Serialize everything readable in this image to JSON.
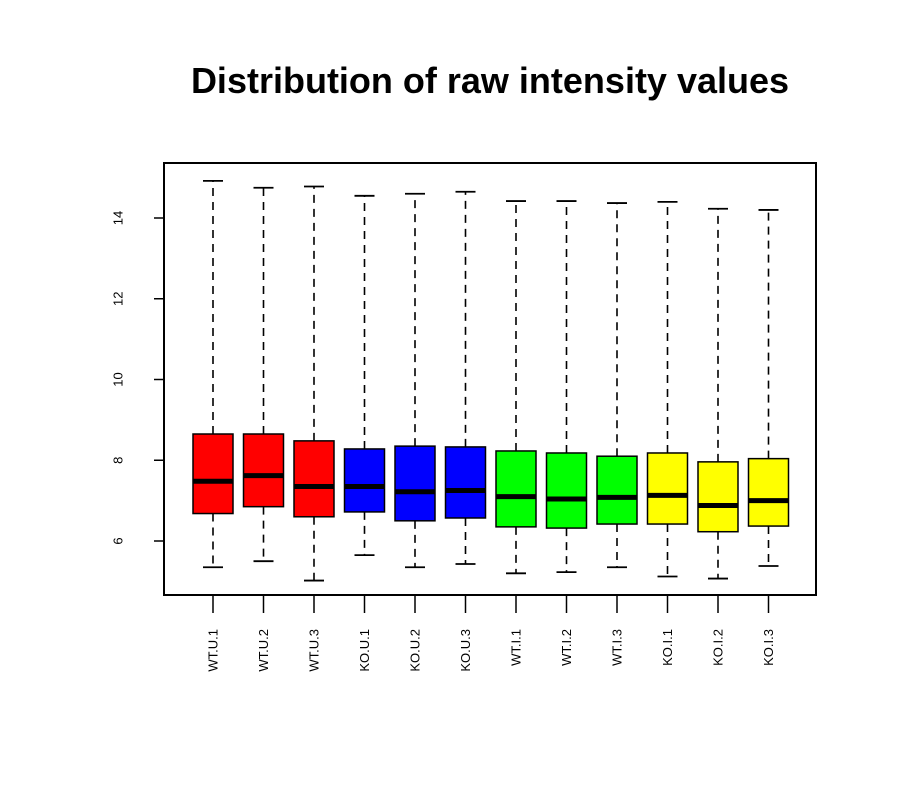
{
  "chart_data": {
    "type": "boxplot",
    "title": "Distribution of raw intensity values",
    "xlabel": "",
    "ylabel": "",
    "ylim": [
      4.6,
      15.3
    ],
    "yticks": [
      6,
      8,
      10,
      12,
      14
    ],
    "grid": false,
    "legend": "none",
    "categories": [
      "WT.U.1",
      "WT.U.2",
      "WT.U.3",
      "KO.U.1",
      "KO.U.2",
      "KO.U.3",
      "WT.I.1",
      "WT.I.2",
      "WT.I.3",
      "KO.I.1",
      "KO.I.2",
      "KO.I.3"
    ],
    "colors": [
      "#ff0000",
      "#ff0000",
      "#ff0000",
      "#0000ff",
      "#0000ff",
      "#0000ff",
      "#00ff00",
      "#00ff00",
      "#00ff00",
      "#ffff00",
      "#ffff00",
      "#ffff00"
    ],
    "boxes": [
      {
        "min": 5.35,
        "q1": 6.68,
        "median": 7.48,
        "q3": 8.65,
        "max": 14.92
      },
      {
        "min": 5.5,
        "q1": 6.85,
        "median": 7.62,
        "q3": 8.65,
        "max": 14.75
      },
      {
        "min": 5.02,
        "q1": 6.6,
        "median": 7.35,
        "q3": 8.48,
        "max": 14.78
      },
      {
        "min": 5.65,
        "q1": 6.72,
        "median": 7.35,
        "q3": 8.28,
        "max": 14.55
      },
      {
        "min": 5.35,
        "q1": 6.5,
        "median": 7.22,
        "q3": 8.35,
        "max": 14.6
      },
      {
        "min": 5.43,
        "q1": 6.57,
        "median": 7.25,
        "q3": 8.33,
        "max": 14.65
      },
      {
        "min": 5.2,
        "q1": 6.35,
        "median": 7.1,
        "q3": 8.23,
        "max": 14.42
      },
      {
        "min": 5.23,
        "q1": 6.32,
        "median": 7.04,
        "q3": 8.18,
        "max": 14.42
      },
      {
        "min": 5.35,
        "q1": 6.42,
        "median": 7.08,
        "q3": 8.1,
        "max": 14.37
      },
      {
        "min": 5.12,
        "q1": 6.42,
        "median": 7.13,
        "q3": 8.18,
        "max": 14.4
      },
      {
        "min": 5.07,
        "q1": 6.23,
        "median": 6.88,
        "q3": 7.96,
        "max": 14.23
      },
      {
        "min": 5.38,
        "q1": 6.37,
        "median": 7.0,
        "q3": 8.04,
        "max": 14.2
      }
    ]
  }
}
